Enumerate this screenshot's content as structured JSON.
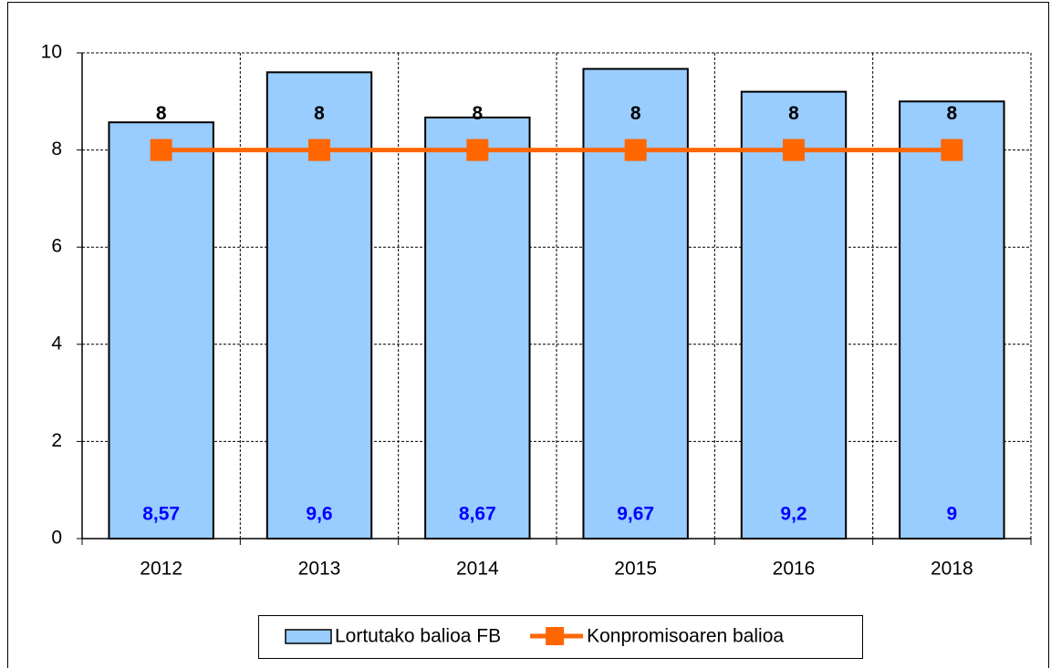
{
  "chart_data": {
    "type": "bar",
    "categories": [
      "2012",
      "2013",
      "2014",
      "2015",
      "2016",
      "2018"
    ],
    "series": [
      {
        "name": "Lortutako balioa FB",
        "type": "bar",
        "color": "#99ccff",
        "values": [
          8.57,
          9.6,
          8.67,
          9.67,
          9.2,
          9
        ],
        "value_labels": [
          "8,57",
          "9,6",
          "8,67",
          "9,67",
          "9,2",
          "9"
        ],
        "label_color": "#0000ff"
      },
      {
        "name": "Konpromisoaren balioa",
        "type": "line",
        "color": "#ff6600",
        "values": [
          8,
          8,
          8,
          8,
          8,
          8
        ],
        "label_color": "#000000"
      }
    ],
    "ylim": [
      0,
      10
    ],
    "yticks": [
      0,
      2,
      4,
      6,
      8,
      10
    ],
    "grid": true,
    "legend": "bottom"
  }
}
